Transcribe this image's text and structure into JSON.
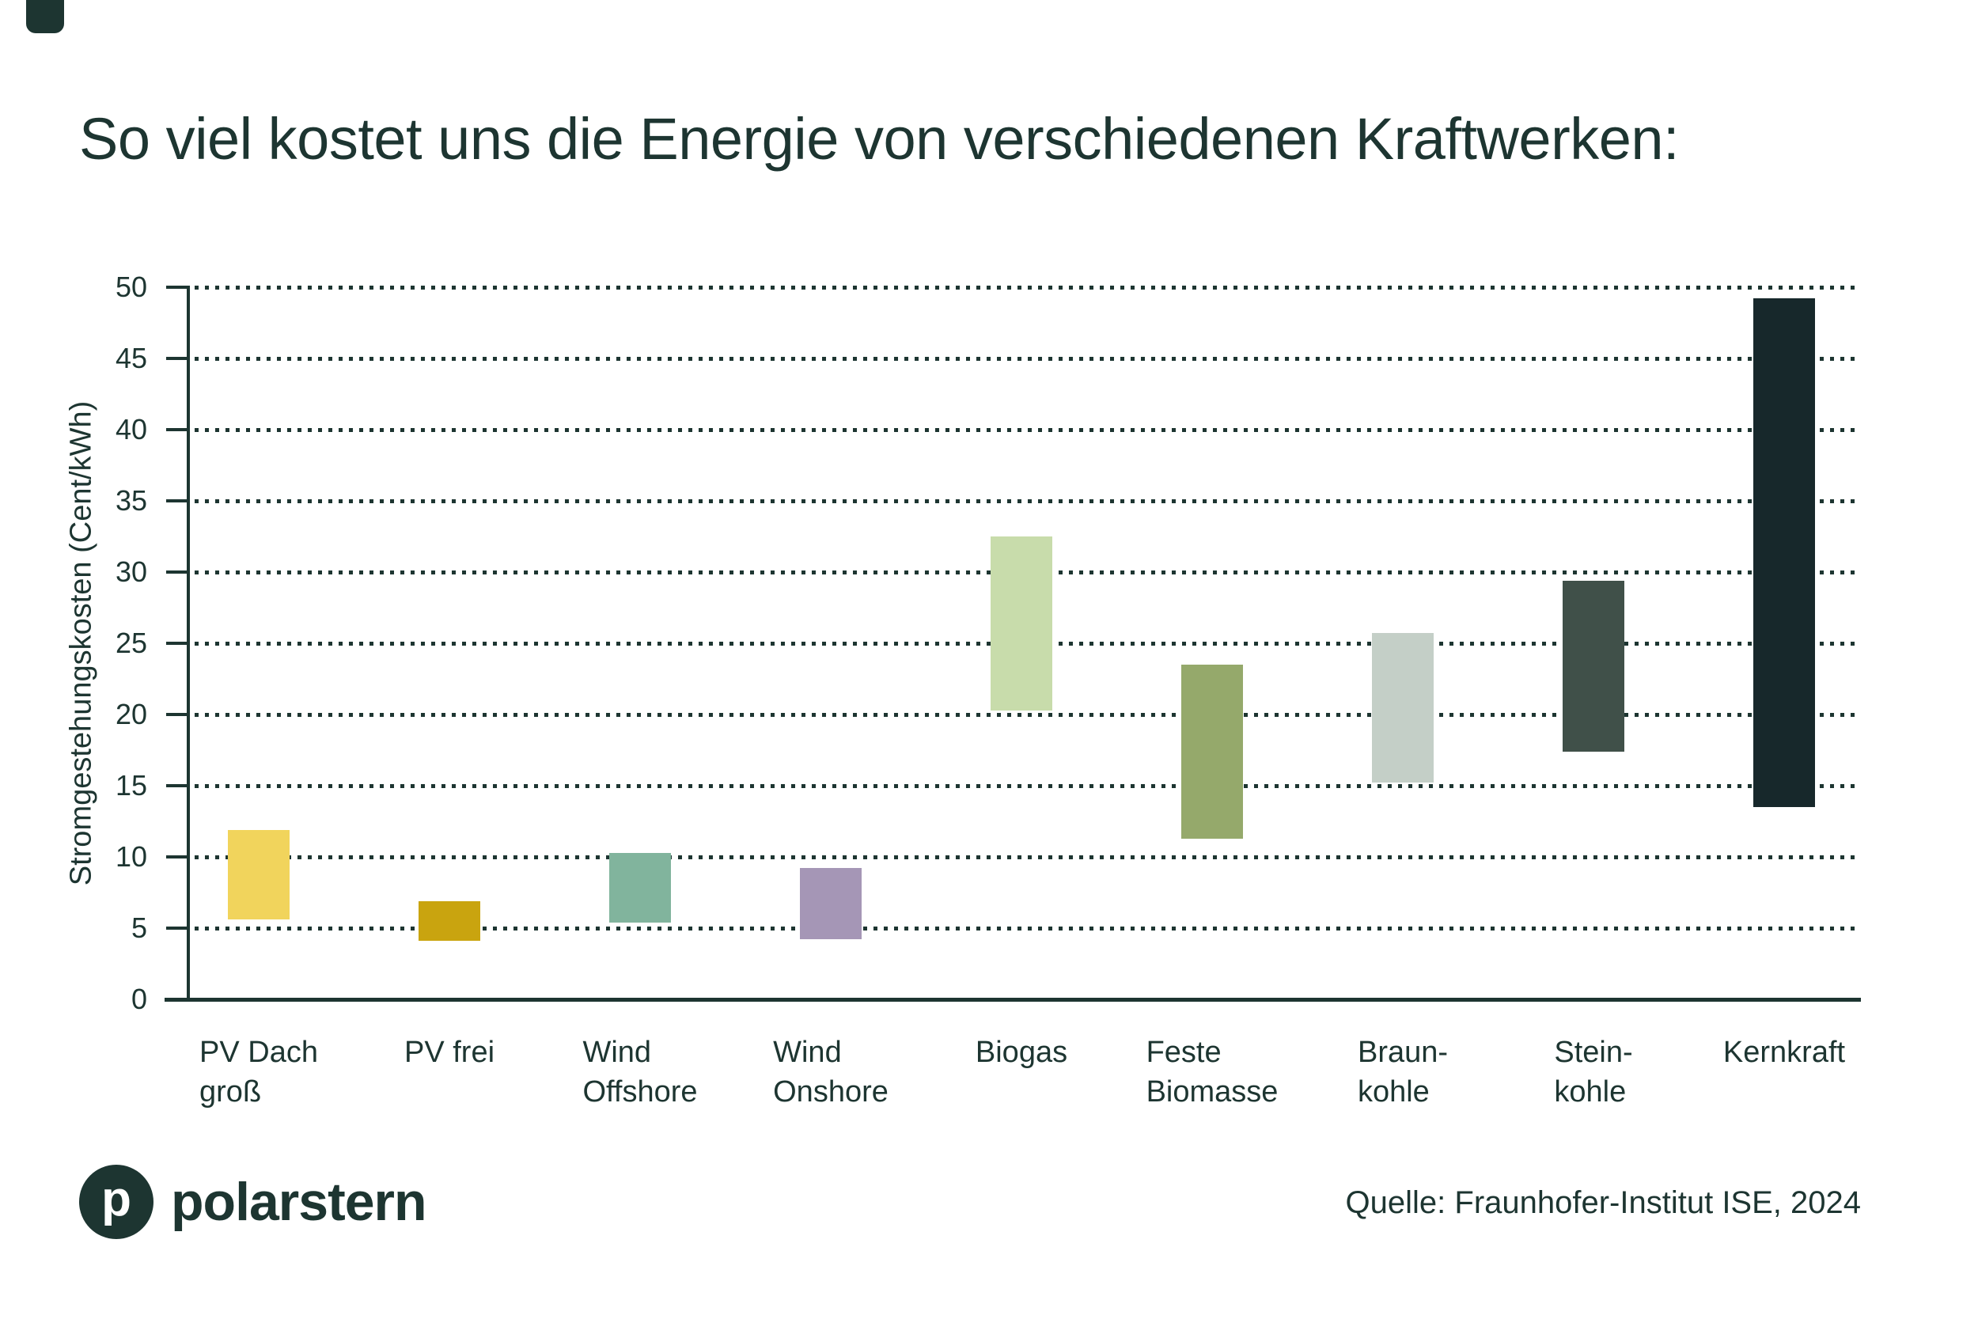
{
  "title": "So viel kostet uns die Energie von verschiedenen Kraftwerken:",
  "source": "Quelle: Fraunhofer-Institut ISE, 2024",
  "brand": {
    "name": "polarstern",
    "mark": "p"
  },
  "colors": {
    "ink": "#1d3531",
    "background": "#ffffff"
  },
  "chart_data": {
    "type": "bar",
    "subtype": "floating-range-bars",
    "title": "So viel kostet uns die Energie von verschiedenen Kraftwerken:",
    "xlabel": "",
    "ylabel": "Stromgestehungskosten (Cent/kWh)",
    "unit": "Cent/kWh",
    "ylim": [
      0,
      50
    ],
    "yticks": [
      0,
      5,
      10,
      15,
      20,
      25,
      30,
      35,
      40,
      45,
      50
    ],
    "grid": "horizontal-dotted",
    "legend": "none",
    "categories": [
      "PV Dach groß",
      "PV frei",
      "Wind Offshore",
      "Wind Onshore",
      "Biogas",
      "Feste Biomasse",
      "Braunkohle",
      "Steinkohle",
      "Kernkraft"
    ],
    "bars": [
      {
        "label": "PV Dach groß",
        "label_lines": "PV Dach\ngroß",
        "min": 5.6,
        "max": 11.9,
        "color": "#f1d45c"
      },
      {
        "label": "PV frei",
        "label_lines": "PV frei",
        "min": 4.1,
        "max": 6.9,
        "color": "#c9a40f"
      },
      {
        "label": "Wind Offshore",
        "label_lines": "Wind\nOffshore",
        "min": 5.4,
        "max": 10.3,
        "color": "#81b49d"
      },
      {
        "label": "Wind Onshore",
        "label_lines": "Wind\nOnshore",
        "min": 4.2,
        "max": 9.2,
        "color": "#a596b6"
      },
      {
        "label": "Biogas",
        "label_lines": "Biogas",
        "min": 20.3,
        "max": 32.5,
        "color": "#c8dcab"
      },
      {
        "label": "Feste Biomasse",
        "label_lines": "Feste\nBiomasse",
        "min": 11.3,
        "max": 23.5,
        "color": "#95a96b"
      },
      {
        "label": "Braunkohle",
        "label_lines": "Braun-\nkohle",
        "min": 15.2,
        "max": 25.7,
        "color": "#c4cfc7"
      },
      {
        "label": "Steinkohle",
        "label_lines": "Stein-\nkohle",
        "min": 17.4,
        "max": 29.4,
        "color": "#405049"
      },
      {
        "label": "Kernkraft",
        "label_lines": "Kernkraft",
        "min": 13.5,
        "max": 49.2,
        "color": "#17282b"
      }
    ]
  }
}
